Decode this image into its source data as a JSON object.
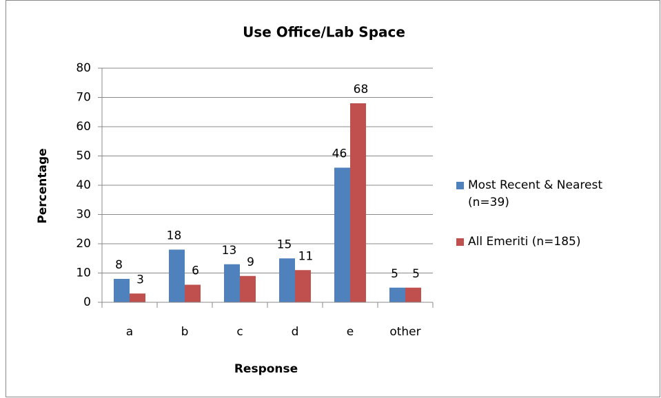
{
  "chart_data": {
    "type": "bar",
    "title": "Use Office/Lab Space",
    "x_label": "Response",
    "y_label": "Percentage",
    "categories": [
      "a",
      "b",
      "c",
      "d",
      "e",
      "other"
    ],
    "series": [
      {
        "name": "Most Recent & Nearest (n=39)",
        "color": "#4f81bd",
        "values": [
          8,
          18,
          13,
          15,
          46,
          5
        ]
      },
      {
        "name": "All Emeriti (n=185)",
        "color": "#c0504d",
        "values": [
          3,
          6,
          9,
          11,
          68,
          5
        ]
      }
    ],
    "ylim": [
      0,
      80
    ],
    "yticks": [
      0,
      10,
      20,
      30,
      40,
      50,
      60,
      70,
      80
    ],
    "grid": true,
    "legend": "right"
  }
}
